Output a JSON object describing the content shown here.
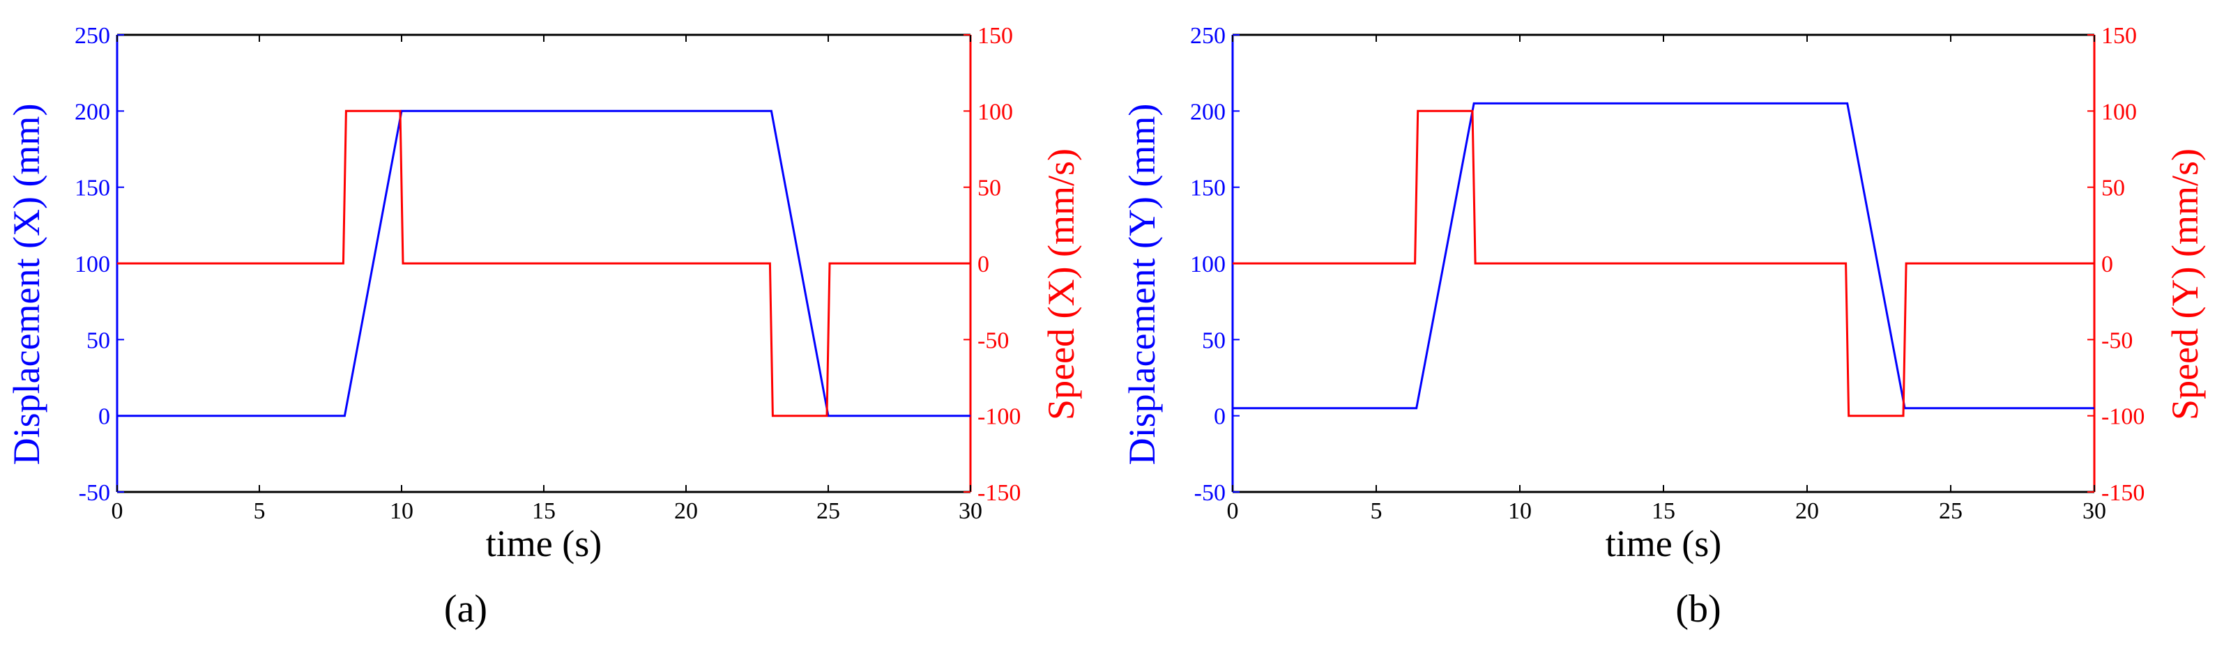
{
  "chart_data": [
    {
      "type": "line",
      "panel_label": "(a)",
      "xlabel": "time (s)",
      "ylabel_left": "Displacement (X) (mm)",
      "ylabel_right": "Speed (X) (mm/s)",
      "xlim": [
        0,
        30
      ],
      "ylim_left": [
        -50,
        250
      ],
      "ylim_right": [
        -150,
        150
      ],
      "xticks": [
        "0",
        "5",
        "10",
        "15",
        "20",
        "25",
        "30"
      ],
      "yticks_left": [
        "-50",
        "0",
        "50",
        "100",
        "150",
        "200",
        "250"
      ],
      "yticks_right": [
        "-150",
        "-100",
        "-50",
        "0",
        "50",
        "100",
        "150"
      ],
      "grid": false,
      "series": [
        {
          "axis": "left",
          "color": "#0000ff",
          "x": [
            0,
            8,
            10,
            23,
            25,
            30
          ],
          "y": [
            0,
            0,
            200,
            200,
            0,
            0
          ]
        },
        {
          "axis": "right",
          "color": "#ff0000",
          "x": [
            0,
            7.95,
            8.05,
            9.95,
            10.05,
            22.95,
            23.05,
            24.95,
            25.05,
            30
          ],
          "y": [
            0,
            0,
            100,
            100,
            0,
            0,
            -100,
            -100,
            0,
            0
          ]
        }
      ]
    },
    {
      "type": "line",
      "panel_label": "(b)",
      "xlabel": "time (s)",
      "ylabel_left": "Displacement (Y) (mm)",
      "ylabel_right": "Speed (Y) (mm/s)",
      "xlim": [
        0,
        30
      ],
      "ylim_left": [
        -50,
        250
      ],
      "ylim_right": [
        -150,
        150
      ],
      "xticks": [
        "0",
        "5",
        "10",
        "15",
        "20",
        "25",
        "30"
      ],
      "yticks_left": [
        "-50",
        "0",
        "50",
        "100",
        "150",
        "200",
        "250"
      ],
      "yticks_right": [
        "-150",
        "-100",
        "-50",
        "0",
        "50",
        "100",
        "150"
      ],
      "grid": false,
      "series": [
        {
          "axis": "left",
          "color": "#0000ff",
          "x": [
            0,
            6.4,
            8.4,
            21.4,
            23.4,
            30
          ],
          "y": [
            5,
            5,
            205,
            205,
            5,
            5
          ]
        },
        {
          "axis": "right",
          "color": "#ff0000",
          "x": [
            0,
            6.35,
            6.45,
            8.35,
            8.45,
            21.35,
            21.45,
            23.35,
            23.45,
            30
          ],
          "y": [
            0,
            0,
            100,
            100,
            0,
            0,
            -100,
            -100,
            0,
            0
          ]
        }
      ]
    }
  ],
  "colors": {
    "left_axis": "#0000ff",
    "right_axis": "#ff0000",
    "frame": "#000000"
  }
}
